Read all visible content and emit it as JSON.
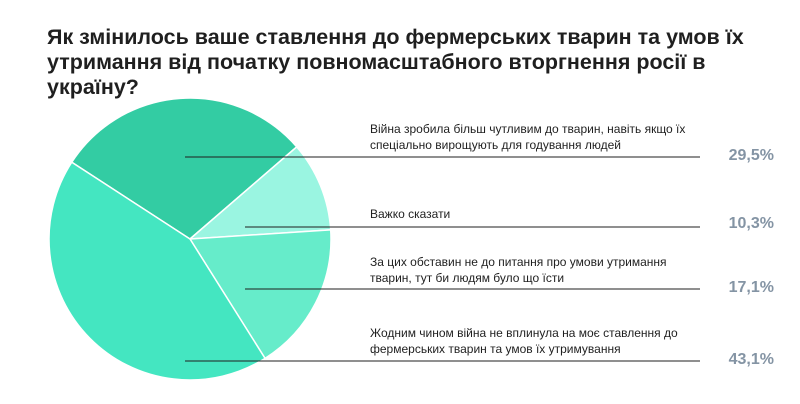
{
  "title": "Як змінилось ваше ставлення до фермерських тварин та умов їх утримання від початку повномасштабного вторгнення росії в україну?",
  "chart_data": {
    "type": "pie",
    "title": "Як змінилось ваше ставлення до фермерських тварин та умов їх утримання від початку повномасштабного вторгнення росії в україну?",
    "categories": [
      "Війна зробила більш чутливим до тварин, навіть якщо їх спеціально вирощують для годування людей",
      "Важко сказати",
      "За цих обставин не до питання про умови утримання тварин, тут би людям було що їсти",
      "Жодним чином війна не вплинула на моє ставлення до фермерських тварин та умов їх утримування"
    ],
    "values": [
      29.5,
      10.3,
      17.1,
      43.1
    ],
    "value_labels": [
      "29,5%",
      "10,3%",
      "17,1%",
      "43,1%"
    ],
    "colors": [
      "#33cca3",
      "#9af5e1",
      "#66ecca",
      "#44e6c1"
    ],
    "legend": "right"
  }
}
